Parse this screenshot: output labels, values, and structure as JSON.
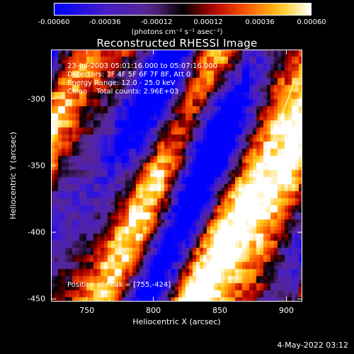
{
  "colorbar": {
    "tick_labels": [
      "-0.00060",
      "-0.00036",
      "-0.00012",
      "0.00012",
      "0.00036",
      "0.00060"
    ],
    "unit_label": "(photons cm⁻² s⁻¹ asec⁻²)",
    "range": [
      -0.0006,
      0.0006
    ]
  },
  "chart_data": {
    "type": "heatmap",
    "title": "Reconstructed RHESSI Image",
    "xlabel": "Heliocentric X (arcsec)",
    "ylabel": "Heliocentric Y (arcsec)",
    "xlim": [
      723,
      912
    ],
    "ylim": [
      -452,
      -263
    ],
    "x_ticks": [
      "750",
      "800",
      "850",
      "900"
    ],
    "x_tick_values": [
      750,
      800,
      850,
      900
    ],
    "y_ticks": [
      "-300",
      "-350",
      "-400",
      "-450"
    ],
    "y_tick_values": [
      -300,
      -350,
      -400,
      -450
    ],
    "peak_position": [
      755,
      -424
    ],
    "colormap": "RHESSI color table: blue-purple-black-red-orange-yellow-white",
    "limb_curve": "white solar limb arc from lower center to upper right"
  },
  "info": {
    "line1": "23-Jul-2003 05:01:16.000 to 05:07:16.000",
    "line2": "Detectors: 3F 4F 5F 6F 7F 8F, Att 0",
    "line3": "Energy Range: 12.0 - 25.0 keV",
    "line4": "Clean    Total counts: 2.96E+03",
    "peak": "Position of Peak = [755,-424]"
  },
  "footer": "4-May-2022 03:12"
}
